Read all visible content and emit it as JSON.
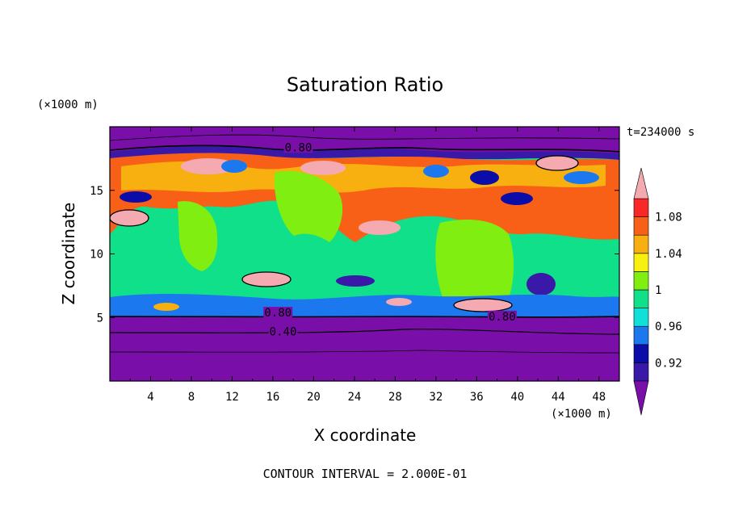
{
  "chart_data": {
    "type": "heatmap",
    "title": "Saturation Ratio",
    "xlabel": "X coordinate",
    "ylabel": "Z coordinate",
    "x_unit": "(×1000 m)",
    "y_unit": "(×1000 m)",
    "time_label": "t=234000 s",
    "footer": "CONTOUR INTERVAL = 2.000E-01",
    "xlim": [
      0,
      50
    ],
    "ylim": [
      0,
      20
    ],
    "xticks": [
      "4",
      "8",
      "12",
      "16",
      "20",
      "24",
      "28",
      "32",
      "36",
      "40",
      "44",
      "48"
    ],
    "yticks": [
      "5",
      "10",
      "15"
    ],
    "contour_labels": [
      {
        "text": "0.80",
        "x": 18.5,
        "z": 18.2
      },
      {
        "text": "0.80",
        "x": 16.5,
        "z": 5.2
      },
      {
        "text": "0.80",
        "x": 38.5,
        "z": 4.9
      },
      {
        "text": "0.40",
        "x": 17.0,
        "z": 3.7
      }
    ],
    "colorbar": {
      "labels": [
        "1.08",
        "1.04",
        "1",
        "0.96",
        "0.92"
      ],
      "levels": [
        0.9,
        0.92,
        0.94,
        0.96,
        0.98,
        1.0,
        1.02,
        1.04,
        1.06,
        1.08,
        1.1
      ],
      "colors": [
        "#7a0ea8",
        "#3a18a8",
        "#0c0ca8",
        "#1c78ee",
        "#10e0d8",
        "#10e08a",
        "#80ee10",
        "#f8f010",
        "#f8b010",
        "#f86018",
        "#f82828",
        "#f4aab0"
      ],
      "extend": "both"
    }
  }
}
